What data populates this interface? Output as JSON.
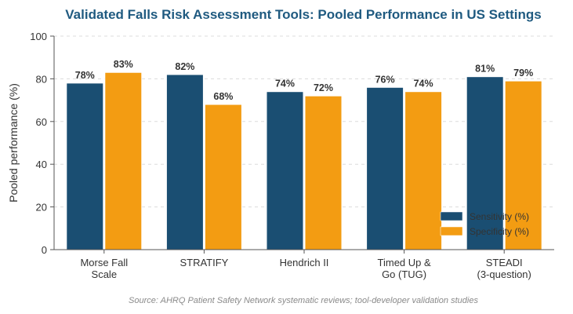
{
  "chart_data": {
    "type": "bar",
    "title": "Validated Falls Risk Assessment Tools: Pooled Performance in US Settings",
    "ylabel": "Pooled performance (%)",
    "xlabel": "",
    "ylim": [
      0,
      100
    ],
    "yticks": [
      "0",
      "20",
      "40",
      "60",
      "80",
      "100"
    ],
    "categories": [
      [
        "Morse Fall",
        "Scale"
      ],
      [
        "STRATIFY"
      ],
      [
        "Hendrich II"
      ],
      [
        "Timed Up &",
        "Go (TUG)"
      ],
      [
        "STEADI",
        "(3-question)"
      ]
    ],
    "series": [
      {
        "name": "Sensitivity (%)",
        "color": "#1a4e72",
        "values": [
          78,
          82,
          74,
          76,
          81
        ],
        "labels": [
          "78%",
          "82%",
          "74%",
          "76%",
          "81%"
        ]
      },
      {
        "name": "Specificity (%)",
        "color": "#f39c12",
        "values": [
          83,
          68,
          72,
          74,
          79
        ],
        "labels": [
          "83%",
          "68%",
          "72%",
          "74%",
          "79%"
        ]
      }
    ],
    "grid": true,
    "legend_position": "lower-right",
    "title_color": "#1f5a80",
    "source": "Source: AHRQ Patient Safety Network systematic reviews; tool-developer validation studies"
  }
}
